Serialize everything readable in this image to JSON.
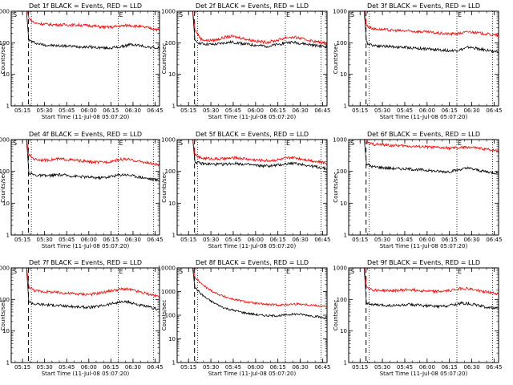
{
  "chart_data": [
    {
      "type": "line",
      "title": "Det 1f BLACK = Events, RED = LLD",
      "xlabel": "Start Time (11-Jul-08 05:07:20)",
      "ylabel": "Counts/sec",
      "y_scale": "log",
      "ylim": [
        1,
        1000
      ],
      "y_ticks": [
        "1",
        "10",
        "100",
        "1000"
      ],
      "x_ticks": [
        "05:15",
        "05:30",
        "05:45",
        "06:00",
        "06:15",
        "06:30",
        "06:45"
      ],
      "x_range": [
        "05:07:20",
        "06:48:00"
      ],
      "dashed_marker_time": "05:19",
      "dotted_marker_times": [
        "05:21",
        "06:20",
        "06:44"
      ],
      "markers": [
        "S",
        "E"
      ],
      "series": [
        {
          "color": "#000000",
          "values": [
            120,
            100,
            90,
            84,
            82,
            80,
            80,
            78,
            76,
            75,
            74,
            72,
            70,
            68,
            70,
            72,
            78,
            88,
            85,
            80,
            74,
            70,
            66
          ]
        },
        {
          "color": "#ff0000",
          "values": [
            600,
            420,
            400,
            385,
            375,
            372,
            372,
            368,
            365,
            360,
            352,
            340,
            320,
            310,
            315,
            335,
            345,
            360,
            340,
            320,
            300,
            280,
            250
          ]
        }
      ]
    },
    {
      "type": "line",
      "title": "Det 2f BLACK = Events, RED = LLD",
      "xlabel": "Start Time (11-Jul-08 05:07:20)",
      "ylabel": "Counts/sec",
      "y_scale": "log",
      "ylim": [
        1,
        1000
      ],
      "y_ticks": [
        "1",
        "10",
        "100",
        "1000"
      ],
      "x_ticks": [
        "05:15",
        "05:30",
        "05:45",
        "06:00",
        "06:15",
        "06:30",
        "06:45"
      ],
      "x_range": [
        "05:07:20",
        "06:48:00"
      ],
      "dashed_marker_time": "05:19",
      "dotted_marker_times": [
        "05:21",
        "06:20",
        "06:44"
      ],
      "markers": [
        "S",
        "E"
      ],
      "series": [
        {
          "color": "#000000",
          "values": [
            110,
            95,
            90,
            88,
            92,
            100,
            104,
            100,
            94,
            88,
            84,
            80,
            78,
            82,
            90,
            100,
            104,
            100,
            94,
            88,
            82,
            78,
            74
          ]
        },
        {
          "color": "#ff0000",
          "values": [
            260,
            130,
            118,
            120,
            130,
            150,
            160,
            150,
            138,
            125,
            115,
            108,
            105,
            112,
            125,
            145,
            150,
            145,
            130,
            120,
            110,
            102,
            95
          ]
        }
      ]
    },
    {
      "type": "line",
      "title": "Det 3f BLACK = Events, RED = LLD",
      "xlabel": "Start Time (11-Jul-08 05:07:20)",
      "ylabel": "Counts/sec",
      "y_scale": "log",
      "ylim": [
        1,
        1000
      ],
      "y_ticks": [
        "1",
        "10",
        "100",
        "1000"
      ],
      "x_ticks": [
        "05:15",
        "05:30",
        "05:45",
        "06:00",
        "06:15",
        "06:30",
        "06:45"
      ],
      "x_range": [
        "05:07:20",
        "06:48:00"
      ],
      "dashed_marker_time": "05:19",
      "dotted_marker_times": [
        "05:21",
        "06:20",
        "06:44"
      ],
      "markers": [
        "S",
        "E"
      ],
      "series": [
        {
          "color": "#000000",
          "values": [
            100,
            85,
            80,
            78,
            76,
            74,
            72,
            70,
            68,
            66,
            64,
            62,
            60,
            58,
            56,
            58,
            62,
            72,
            68,
            62,
            58,
            55,
            52
          ]
        },
        {
          "color": "#ff0000",
          "values": [
            350,
            280,
            270,
            260,
            250,
            245,
            240,
            235,
            230,
            225,
            220,
            210,
            200,
            195,
            190,
            195,
            205,
            225,
            215,
            200,
            190,
            180,
            170
          ]
        }
      ]
    },
    {
      "type": "line",
      "title": "Det 4f BLACK = Events, RED = LLD",
      "xlabel": "Start Time (11-Jul-08 05:07:20)",
      "ylabel": "Counts/sec",
      "y_scale": "log",
      "ylim": [
        1,
        1000
      ],
      "y_ticks": [
        "1",
        "10",
        "100",
        "1000"
      ],
      "x_ticks": [
        "05:15",
        "05:30",
        "05:45",
        "06:00",
        "06:15",
        "06:30",
        "06:45"
      ],
      "x_range": [
        "05:07:20",
        "06:48:00"
      ],
      "dashed_marker_time": "05:19",
      "dotted_marker_times": [
        "05:21",
        "06:20",
        "06:44"
      ],
      "markers": [
        "S",
        "E"
      ],
      "series": [
        {
          "color": "#000000",
          "values": [
            90,
            76,
            74,
            72,
            75,
            78,
            76,
            72,
            70,
            68,
            66,
            64,
            63,
            65,
            70,
            76,
            80,
            76,
            70,
            65,
            60,
            56,
            52
          ]
        },
        {
          "color": "#ff0000",
          "values": [
            320,
            240,
            230,
            225,
            235,
            245,
            240,
            230,
            220,
            210,
            200,
            195,
            192,
            198,
            210,
            230,
            240,
            230,
            215,
            200,
            185,
            170,
            155
          ]
        }
      ]
    },
    {
      "type": "line",
      "title": "Det 5f BLACK = Events, RED = LLD",
      "xlabel": "Start Time (11-Jul-08 05:07:20)",
      "ylabel": "Counts/sec",
      "y_scale": "log",
      "ylim": [
        1,
        1000
      ],
      "y_ticks": [
        "1",
        "10",
        "100",
        "1000"
      ],
      "x_ticks": [
        "05:15",
        "05:30",
        "05:45",
        "06:00",
        "06:15",
        "06:30",
        "06:45"
      ],
      "x_range": [
        "05:07:20",
        "06:48:00"
      ],
      "dashed_marker_time": "05:19",
      "dotted_marker_times": [
        "05:21",
        "06:20",
        "06:44"
      ],
      "markers": [
        "S",
        "E"
      ],
      "series": [
        {
          "color": "#000000",
          "values": [
            200,
            175,
            170,
            168,
            165,
            168,
            175,
            178,
            170,
            162,
            155,
            150,
            148,
            150,
            158,
            170,
            180,
            175,
            165,
            150,
            140,
            130,
            120
          ]
        },
        {
          "color": "#ff0000",
          "values": [
            330,
            260,
            255,
            250,
            245,
            250,
            260,
            265,
            255,
            240,
            230,
            222,
            218,
            222,
            235,
            255,
            270,
            262,
            245,
            225,
            210,
            195,
            180
          ]
        }
      ]
    },
    {
      "type": "line",
      "title": "Det 6f BLACK = Events, RED = LLD",
      "xlabel": "Start Time (11-Jul-08 05:07:20)",
      "ylabel": "Counts/sec",
      "y_scale": "log",
      "ylim": [
        1,
        1000
      ],
      "y_ticks": [
        "1",
        "10",
        "100",
        "1000"
      ],
      "x_ticks": [
        "05:15",
        "05:30",
        "05:45",
        "06:00",
        "06:15",
        "06:30",
        "06:45"
      ],
      "x_range": [
        "05:07:20",
        "06:48:00"
      ],
      "dashed_marker_time": "05:19",
      "dotted_marker_times": [
        "05:21",
        "06:20",
        "06:44"
      ],
      "markers": [
        "S",
        "E"
      ],
      "series": [
        {
          "color": "#000000",
          "values": [
            170,
            140,
            135,
            130,
            125,
            122,
            120,
            118,
            115,
            112,
            108,
            104,
            100,
            98,
            100,
            108,
            120,
            125,
            115,
            105,
            98,
            92,
            88
          ]
        },
        {
          "color": "#ff0000",
          "values": [
            800,
            720,
            700,
            680,
            660,
            645,
            635,
            625,
            610,
            600,
            585,
            570,
            555,
            545,
            540,
            545,
            560,
            575,
            550,
            520,
            495,
            470,
            450
          ]
        }
      ]
    },
    {
      "type": "line",
      "title": "Det 7f BLACK = Events, RED = LLD",
      "xlabel": "Start Time (11-Jul-08 05:07:20)",
      "ylabel": "Counts/sec",
      "y_scale": "log",
      "ylim": [
        1,
        1000
      ],
      "y_ticks": [
        "1",
        "10",
        "100",
        "1000"
      ],
      "x_ticks": [
        "05:15",
        "05:30",
        "05:45",
        "06:00",
        "06:15",
        "06:30",
        "06:45"
      ],
      "x_range": [
        "05:07:20",
        "06:48:00"
      ],
      "dashed_marker_time": "05:19",
      "dotted_marker_times": [
        "05:21",
        "06:20",
        "06:44"
      ],
      "markers": [
        "S",
        "E"
      ],
      "series": [
        {
          "color": "#000000",
          "values": [
            85,
            72,
            70,
            68,
            66,
            64,
            62,
            60,
            58,
            57,
            56,
            58,
            62,
            68,
            74,
            80,
            84,
            80,
            72,
            64,
            58,
            52,
            48
          ]
        },
        {
          "color": "#ff0000",
          "values": [
            250,
            190,
            180,
            175,
            170,
            165,
            160,
            155,
            150,
            148,
            146,
            150,
            160,
            175,
            190,
            205,
            215,
            205,
            185,
            165,
            150,
            135,
            120
          ]
        }
      ]
    },
    {
      "type": "line",
      "title": "Det 8f BLACK = Events, RED = LLD",
      "xlabel": "Start Time (11-Jul-08 05:07:20)",
      "ylabel": "Counts/sec",
      "y_scale": "log",
      "ylim": [
        1,
        10000
      ],
      "y_ticks": [
        "1",
        "10",
        "100",
        "1000",
        "10000"
      ],
      "x_ticks": [
        "05:15",
        "05:30",
        "05:45",
        "06:00",
        "06:15",
        "06:30",
        "06:45"
      ],
      "x_range": [
        "05:07:20",
        "06:48:00"
      ],
      "dashed_marker_time": "05:19",
      "dotted_marker_times": [
        "05:21",
        "06:20",
        "06:44"
      ],
      "markers": [
        "S",
        "E"
      ],
      "series": [
        {
          "color": "#000000",
          "values": [
            1500,
            800,
            500,
            350,
            260,
            200,
            170,
            150,
            130,
            118,
            108,
            100,
            96,
            94,
            96,
            102,
            108,
            112,
            106,
            98,
            90,
            82,
            75
          ]
        },
        {
          "color": "#ff0000",
          "values": [
            4000,
            2200,
            1400,
            1000,
            750,
            600,
            500,
            440,
            390,
            350,
            320,
            300,
            285,
            275,
            272,
            278,
            290,
            300,
            290,
            275,
            260,
            245,
            230
          ]
        }
      ]
    },
    {
      "type": "line",
      "title": "Det 9f BLACK = Events, RED = LLD",
      "xlabel": "Start Time (11-Jul-08 05:07:20)",
      "ylabel": "Counts/sec",
      "y_scale": "log",
      "ylim": [
        1,
        1000
      ],
      "y_ticks": [
        "1",
        "10",
        "100",
        "1000"
      ],
      "x_ticks": [
        "05:15",
        "05:30",
        "05:45",
        "06:00",
        "06:15",
        "06:30",
        "06:45"
      ],
      "x_range": [
        "05:07:20",
        "06:48:00"
      ],
      "dashed_marker_time": "05:19",
      "dotted_marker_times": [
        "05:21",
        "06:20",
        "06:44"
      ],
      "markers": [
        "S",
        "E"
      ],
      "series": [
        {
          "color": "#000000",
          "values": [
            80,
            68,
            66,
            65,
            64,
            64,
            66,
            68,
            67,
            65,
            63,
            61,
            60,
            62,
            66,
            72,
            76,
            74,
            68,
            62,
            57,
            54,
            50
          ]
        },
        {
          "color": "#ff0000",
          "values": [
            260,
            200,
            195,
            192,
            190,
            192,
            198,
            205,
            200,
            192,
            185,
            180,
            178,
            182,
            195,
            212,
            225,
            218,
            200,
            185,
            172,
            160,
            150
          ]
        }
      ]
    }
  ]
}
